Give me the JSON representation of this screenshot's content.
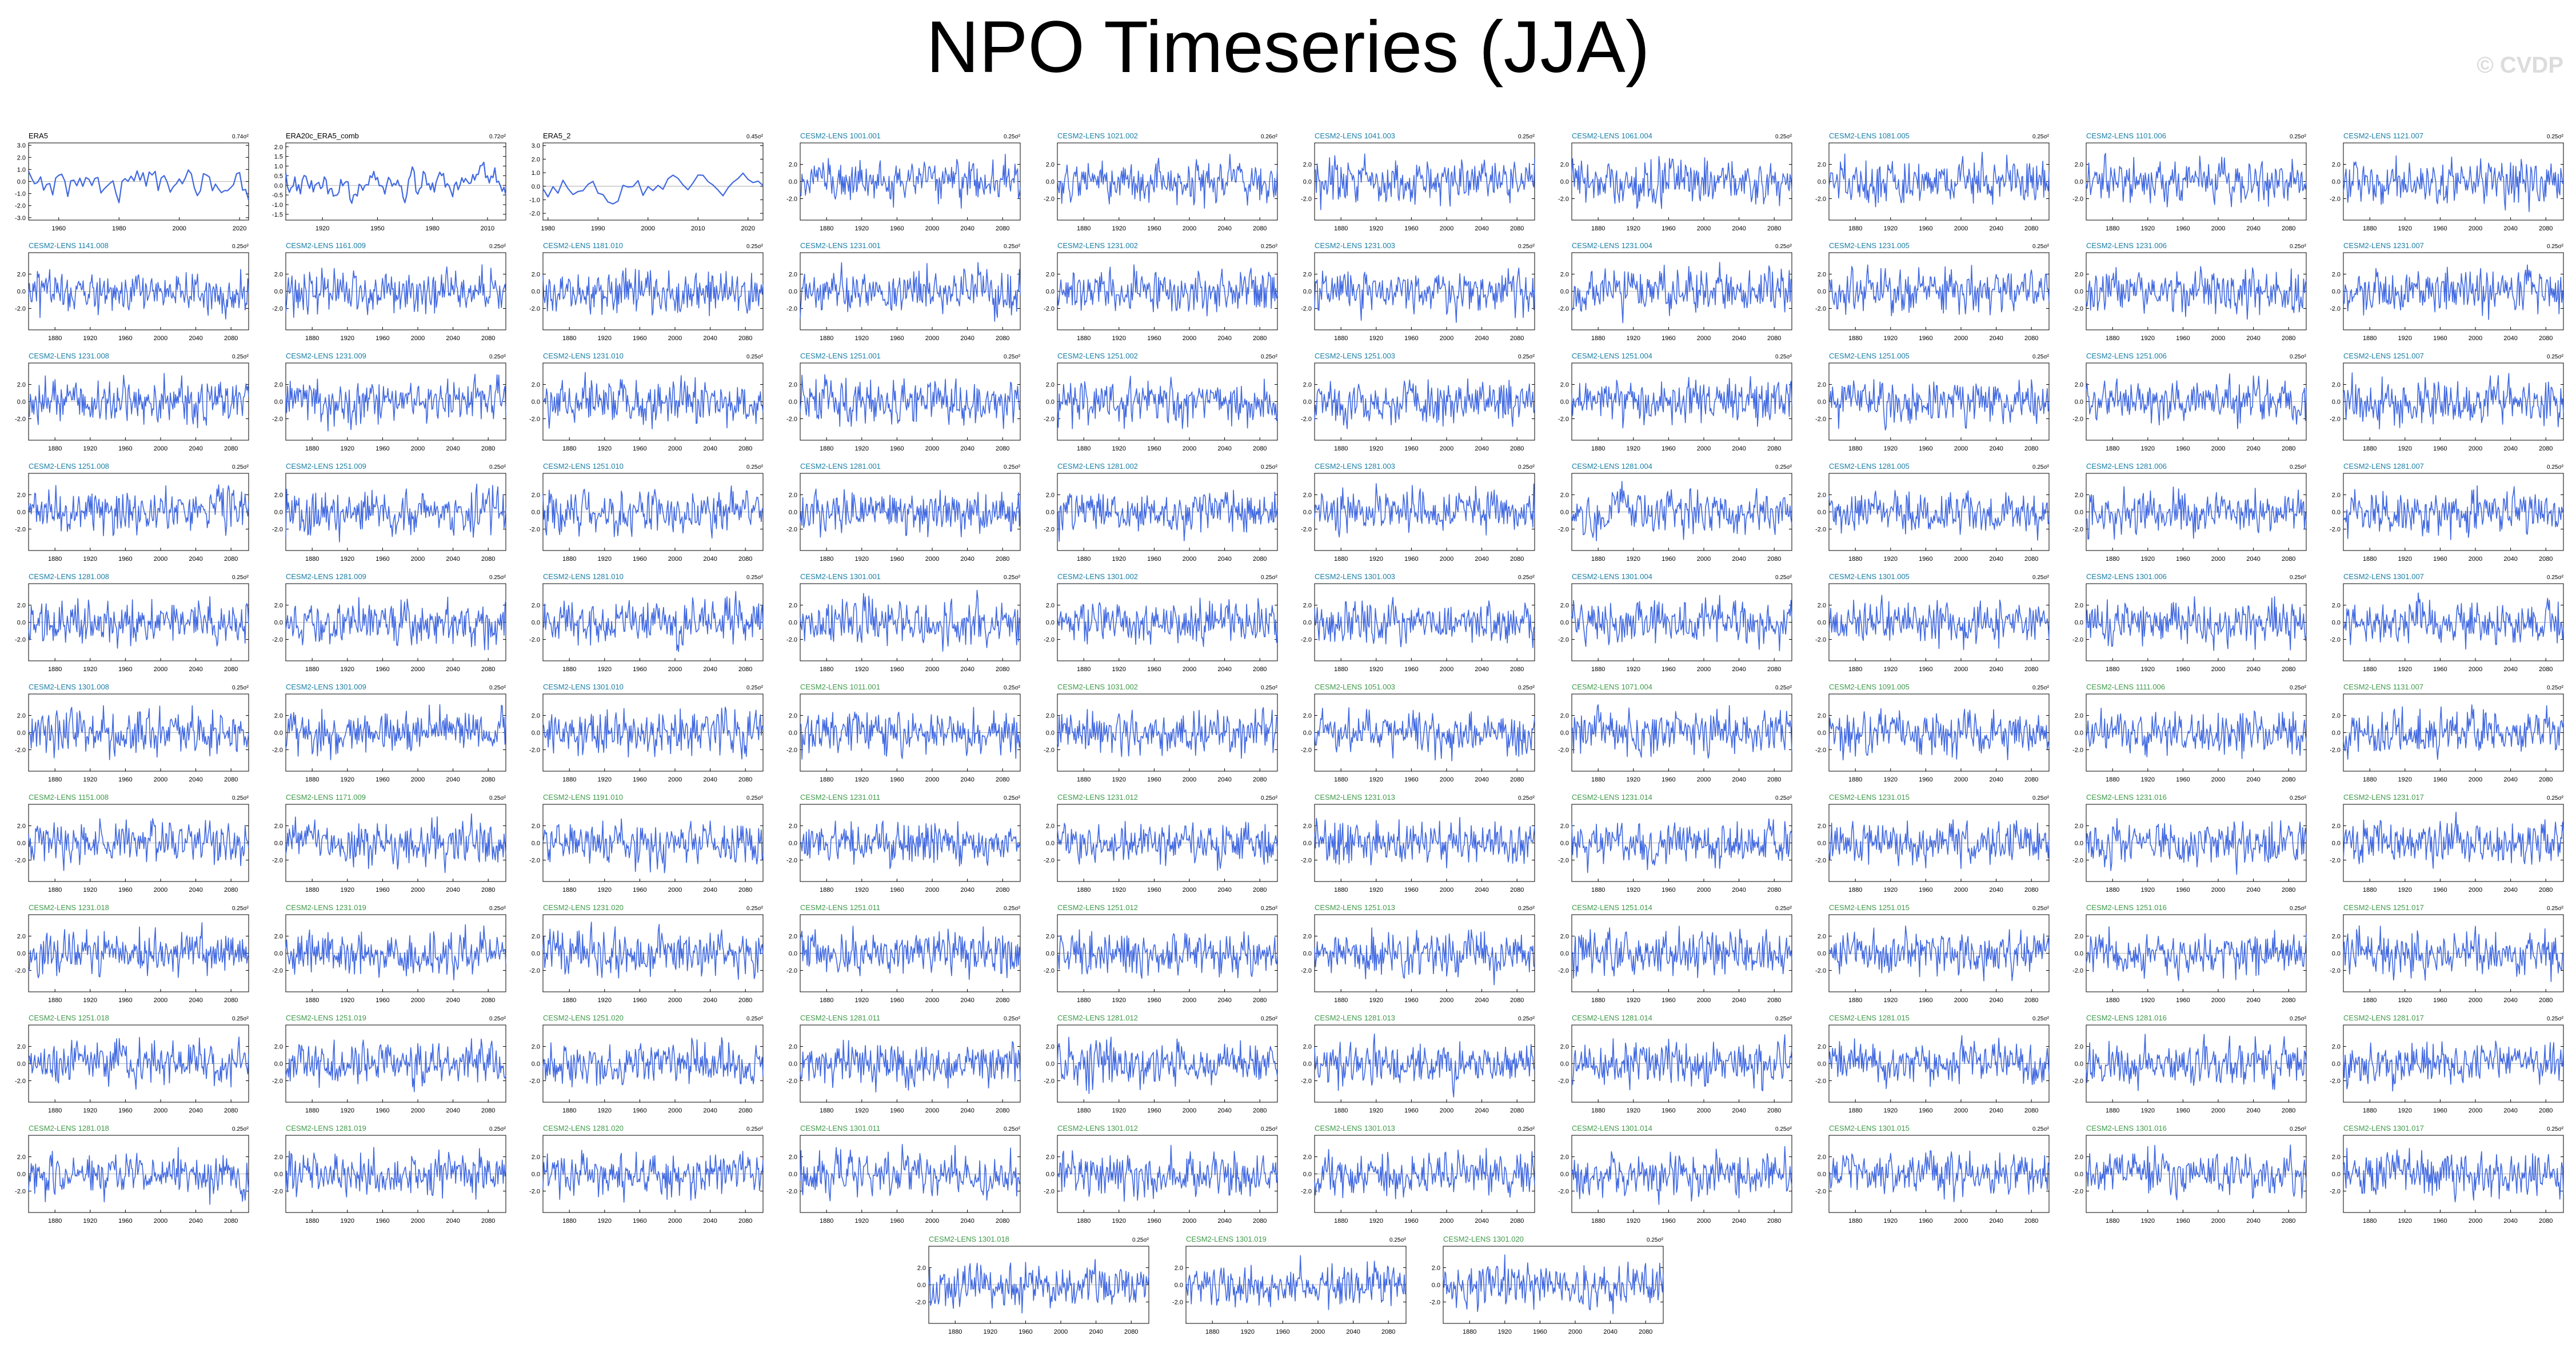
{
  "title": "NPO Timeseries (JJA)",
  "watermark": "© CVDP",
  "colors": {
    "line": "#4169e1",
    "obs_label": "#000000",
    "run_label": "#1b7fa6",
    "run_label_late": "#3f9a4a",
    "axis": "#000000",
    "zero": "#9e9e9e"
  },
  "chart_data": {
    "type": "line",
    "panel_count": 103,
    "panels": [
      {
        "label": "ERA5",
        "value": "0.74σ²",
        "xticks": [
          1960,
          1980,
          2000,
          2020
        ],
        "yticks": [
          3.0,
          2.0,
          1.0,
          0.0,
          -1.0,
          -2.0,
          -3.0
        ],
        "xlim": [
          1950,
          2023
        ],
        "ylim": [
          -3.2,
          3.2
        ]
      },
      {
        "label": "ERA20c_ERA5_comb",
        "value": "0.72σ²",
        "xticks": [
          1920,
          1950,
          1980,
          2010
        ],
        "yticks": [
          2.0,
          1.5,
          1.0,
          0.5,
          0.0,
          -0.5,
          -1.0,
          -1.5
        ],
        "xlim": [
          1900,
          2020
        ],
        "ylim": [
          -1.8,
          2.2
        ]
      },
      {
        "label": "ERA5_2",
        "value": "0.45σ²",
        "xticks": [
          1980,
          1990,
          2000,
          2010,
          2020
        ],
        "yticks": [
          3.0,
          2.0,
          1.0,
          0.0,
          -1.0,
          -2.0
        ],
        "xlim": [
          1979,
          2023
        ],
        "ylim": [
          -2.5,
          3.2
        ]
      },
      {
        "label": "CESM2-LENS 1001.001",
        "value": "0.25σ²"
      },
      {
        "label": "CESM2-LENS 1021.002",
        "value": "0.26σ²"
      },
      {
        "label": "CESM2-LENS 1041.003",
        "value": "0.25σ²"
      },
      {
        "label": "CESM2-LENS 1061.004",
        "value": "0.25σ²"
      },
      {
        "label": "CESM2-LENS 1081.005",
        "value": "0.25σ²"
      },
      {
        "label": "CESM2-LENS 1101.006",
        "value": "0.25σ²"
      },
      {
        "label": "CESM2-LENS 1121.007",
        "value": "0.25σ²"
      },
      {
        "label": "CESM2-LENS 1141.008",
        "value": "0.25σ²"
      },
      {
        "label": "CESM2-LENS 1161.009",
        "value": "0.25σ²"
      },
      {
        "label": "CESM2-LENS 1181.010",
        "value": "0.25σ²"
      },
      {
        "label": "CESM2-LENS 1231.001",
        "value": "0.25σ²"
      },
      {
        "label": "CESM2-LENS 1231.002",
        "value": "0.25σ²"
      },
      {
        "label": "CESM2-LENS 1231.003",
        "value": "0.25σ²"
      },
      {
        "label": "CESM2-LENS 1231.004",
        "value": "0.25σ²"
      },
      {
        "label": "CESM2-LENS 1231.005",
        "value": "0.25σ²"
      },
      {
        "label": "CESM2-LENS 1231.006",
        "value": "0.25σ²"
      },
      {
        "label": "CESM2-LENS 1231.007",
        "value": "0.25σ²"
      },
      {
        "label": "CESM2-LENS 1231.008",
        "value": "0.25σ²"
      },
      {
        "label": "CESM2-LENS 1231.009",
        "value": "0.25σ²"
      },
      {
        "label": "CESM2-LENS 1231.010",
        "value": "0.25σ²"
      },
      {
        "label": "CESM2-LENS 1251.001",
        "value": "0.25σ²"
      },
      {
        "label": "CESM2-LENS 1251.002",
        "value": "0.25σ²"
      },
      {
        "label": "CESM2-LENS 1251.003",
        "value": "0.25σ²"
      },
      {
        "label": "CESM2-LENS 1251.004",
        "value": "0.25σ²"
      },
      {
        "label": "CESM2-LENS 1251.005",
        "value": "0.25σ²"
      },
      {
        "label": "CESM2-LENS 1251.006",
        "value": "0.25σ²"
      },
      {
        "label": "CESM2-LENS 1251.007",
        "value": "0.25σ²"
      },
      {
        "label": "CESM2-LENS 1251.008",
        "value": "0.25σ²"
      },
      {
        "label": "CESM2-LENS 1251.009",
        "value": "0.25σ²"
      },
      {
        "label": "CESM2-LENS 1251.010",
        "value": "0.25σ²"
      },
      {
        "label": "CESM2-LENS 1281.001",
        "value": "0.25σ²"
      },
      {
        "label": "CESM2-LENS 1281.002",
        "value": "0.25σ²"
      },
      {
        "label": "CESM2-LENS 1281.003",
        "value": "0.25σ²"
      },
      {
        "label": "CESM2-LENS 1281.004",
        "value": "0.25σ²"
      },
      {
        "label": "CESM2-LENS 1281.005",
        "value": "0.25σ²"
      },
      {
        "label": "CESM2-LENS 1281.006",
        "value": "0.25σ²"
      },
      {
        "label": "CESM2-LENS 1281.007",
        "value": "0.25σ²"
      },
      {
        "label": "CESM2-LENS 1281.008",
        "value": "0.25σ²"
      },
      {
        "label": "CESM2-LENS 1281.009",
        "value": "0.25σ²"
      },
      {
        "label": "CESM2-LENS 1281.010",
        "value": "0.25σ²"
      },
      {
        "label": "CESM2-LENS 1301.001",
        "value": "0.25σ²"
      },
      {
        "label": "CESM2-LENS 1301.002",
        "value": "0.25σ²"
      },
      {
        "label": "CESM2-LENS 1301.003",
        "value": "0.25σ²"
      },
      {
        "label": "CESM2-LENS 1301.004",
        "value": "0.25σ²"
      },
      {
        "label": "CESM2-LENS 1301.005",
        "value": "0.25σ²"
      },
      {
        "label": "CESM2-LENS 1301.006",
        "value": "0.25σ²"
      },
      {
        "label": "CESM2-LENS 1301.007",
        "value": "0.25σ²"
      },
      {
        "label": "CESM2-LENS 1301.008",
        "value": "0.25σ²"
      },
      {
        "label": "CESM2-LENS 1301.009",
        "value": "0.25σ²"
      },
      {
        "label": "CESM2-LENS 1301.010",
        "value": "0.25σ²"
      },
      {
        "label": "CESM2-LENS 1011.001",
        "value": "0.25σ²"
      },
      {
        "label": "CESM2-LENS 1031.002",
        "value": "0.25σ²"
      },
      {
        "label": "CESM2-LENS 1051.003",
        "value": "0.25σ²"
      },
      {
        "label": "CESM2-LENS 1071.004",
        "value": "0.25σ²"
      },
      {
        "label": "CESM2-LENS 1091.005",
        "value": "0.25σ²"
      },
      {
        "label": "CESM2-LENS 1111.006",
        "value": "0.25σ²"
      },
      {
        "label": "CESM2-LENS 1131.007",
        "value": "0.25σ²"
      },
      {
        "label": "CESM2-LENS 1151.008",
        "value": "0.25σ²"
      },
      {
        "label": "CESM2-LENS 1171.009",
        "value": "0.25σ²"
      },
      {
        "label": "CESM2-LENS 1191.010",
        "value": "0.25σ²"
      },
      {
        "label": "CESM2-LENS 1231.011",
        "value": "0.25σ²"
      },
      {
        "label": "CESM2-LENS 1231.012",
        "value": "0.25σ²"
      },
      {
        "label": "CESM2-LENS 1231.013",
        "value": "0.25σ²"
      },
      {
        "label": "CESM2-LENS 1231.014",
        "value": "0.25σ²"
      },
      {
        "label": "CESM2-LENS 1231.015",
        "value": "0.25σ²"
      },
      {
        "label": "CESM2-LENS 1231.016",
        "value": "0.25σ²"
      },
      {
        "label": "CESM2-LENS 1231.017",
        "value": "0.25σ²"
      },
      {
        "label": "CESM2-LENS 1231.018",
        "value": "0.25σ²"
      },
      {
        "label": "CESM2-LENS 1231.019",
        "value": "0.25σ²"
      },
      {
        "label": "CESM2-LENS 1231.020",
        "value": "0.25σ²"
      },
      {
        "label": "CESM2-LENS 1251.011",
        "value": "0.25σ²"
      },
      {
        "label": "CESM2-LENS 1251.012",
        "value": "0.25σ²"
      },
      {
        "label": "CESM2-LENS 1251.013",
        "value": "0.25σ²"
      },
      {
        "label": "CESM2-LENS 1251.014",
        "value": "0.25σ²"
      },
      {
        "label": "CESM2-LENS 1251.015",
        "value": "0.25σ²"
      },
      {
        "label": "CESM2-LENS 1251.016",
        "value": "0.25σ²"
      },
      {
        "label": "CESM2-LENS 1251.017",
        "value": "0.25σ²"
      },
      {
        "label": "CESM2-LENS 1251.018",
        "value": "0.25σ²"
      },
      {
        "label": "CESM2-LENS 1251.019",
        "value": "0.25σ²"
      },
      {
        "label": "CESM2-LENS 1251.020",
        "value": "0.25σ²"
      },
      {
        "label": "CESM2-LENS 1281.011",
        "value": "0.25σ²"
      },
      {
        "label": "CESM2-LENS 1281.012",
        "value": "0.25σ²"
      },
      {
        "label": "CESM2-LENS 1281.013",
        "value": "0.25σ²"
      },
      {
        "label": "CESM2-LENS 1281.014",
        "value": "0.25σ²"
      },
      {
        "label": "CESM2-LENS 1281.015",
        "value": "0.25σ²"
      },
      {
        "label": "CESM2-LENS 1281.016",
        "value": "0.25σ²"
      },
      {
        "label": "CESM2-LENS 1281.017",
        "value": "0.25σ²"
      },
      {
        "label": "CESM2-LENS 1281.018",
        "value": "0.25σ²"
      },
      {
        "label": "CESM2-LENS 1281.019",
        "value": "0.25σ²"
      },
      {
        "label": "CESM2-LENS 1281.020",
        "value": "0.25σ²"
      },
      {
        "label": "CESM2-LENS 1301.011",
        "value": "0.25σ²"
      },
      {
        "label": "CESM2-LENS 1301.012",
        "value": "0.25σ²"
      },
      {
        "label": "CESM2-LENS 1301.013",
        "value": "0.25σ²"
      },
      {
        "label": "CESM2-LENS 1301.014",
        "value": "0.25σ²"
      },
      {
        "label": "CESM2-LENS 1301.015",
        "value": "0.25σ²"
      },
      {
        "label": "CESM2-LENS 1301.016",
        "value": "0.25σ²"
      },
      {
        "label": "CESM2-LENS 1301.017",
        "value": "0.25σ²"
      },
      {
        "label": "CESM2-LENS 1301.018",
        "value": "0.25σ²"
      },
      {
        "label": "CESM2-LENS 1301.019",
        "value": "0.25σ²"
      },
      {
        "label": "CESM2-LENS 1301.020",
        "value": "0.25σ²"
      }
    ],
    "model_defaults": {
      "xlim": [
        1850,
        2100
      ],
      "ylim": [
        -4.5,
        4.5
      ],
      "xticks": [
        1880,
        1920,
        1960,
        2000,
        2040,
        2080
      ],
      "yticks": [
        2.0,
        0.0,
        -2.0
      ]
    },
    "grid": false,
    "legend": "none"
  }
}
